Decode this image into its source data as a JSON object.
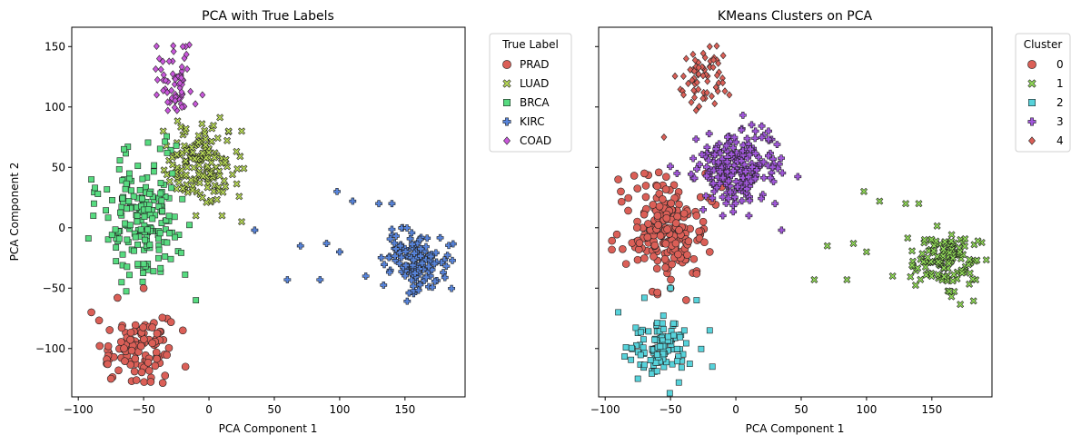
{
  "figure": {
    "left": {
      "title": "PCA with True Labels",
      "xlabel": "PCA Component 1",
      "ylabel": "PCA Component 2",
      "legend_title": "True Label",
      "legend_entries": [
        "PRAD",
        "LUAD",
        "BRCA",
        "KIRC",
        "COAD"
      ]
    },
    "right": {
      "title": "KMeans Clusters on PCA",
      "xlabel": "PCA Component 1",
      "legend_title": "Cluster",
      "legend_entries": [
        "0",
        "1",
        "2",
        "3",
        "4"
      ]
    }
  },
  "chart_data": [
    {
      "type": "scatter",
      "title": "PCA with True Labels",
      "xlabel": "PCA Component 1",
      "ylabel": "PCA Component 2",
      "xlim": [
        -105,
        196
      ],
      "ylim": [
        -140,
        166
      ],
      "xticks": [
        -100,
        -50,
        0,
        50,
        100,
        150
      ],
      "yticks": [
        -100,
        -50,
        0,
        50,
        100,
        150
      ],
      "grid": false,
      "legend_title": "True Label",
      "legend_position": "outside-upper-right",
      "series": [
        {
          "name": "PRAD",
          "color": "#db5f57",
          "marker": "circle",
          "center": [
            -55,
            -100
          ],
          "spread": [
            13,
            12
          ],
          "count": 110,
          "extra_points": [
            [
              -90,
              -70
            ],
            [
              -70,
              -58
            ],
            [
              -50,
              -50
            ],
            [
              -20,
              -85
            ],
            [
              -18,
              -115
            ],
            [
              -75,
              -125
            ]
          ]
        },
        {
          "name": "LUAD",
          "color": "#b9db57",
          "marker": "x",
          "center": [
            -5,
            52
          ],
          "spread": [
            14,
            14
          ],
          "count": 140,
          "extra_points": [
            [
              -35,
              80
            ],
            [
              15,
              80
            ],
            [
              25,
              80
            ],
            [
              -10,
              10
            ],
            [
              10,
              10
            ],
            [
              25,
              5
            ],
            [
              -5,
              25
            ]
          ]
        },
        {
          "name": "BRCA",
          "color": "#57db80",
          "marker": "square",
          "center": [
            -50,
            10
          ],
          "spread": [
            15,
            24
          ],
          "count": 190,
          "extra_points": [
            [
              -90,
              40
            ],
            [
              -85,
              28
            ],
            [
              -88,
              20
            ],
            [
              -32,
              62
            ],
            [
              -10,
              -60
            ],
            [
              -50,
              -30
            ],
            [
              -25,
              68
            ]
          ]
        },
        {
          "name": "KIRC",
          "color": "#5784db",
          "marker": "plus",
          "center": [
            160,
            -27
          ],
          "spread": [
            12,
            12
          ],
          "count": 130,
          "extra_points": [
            [
              60,
              -43
            ],
            [
              85,
              -43
            ],
            [
              70,
              -15
            ],
            [
              98,
              30
            ],
            [
              110,
              22
            ],
            [
              120,
              -40
            ],
            [
              130,
              20
            ],
            [
              140,
              20
            ],
            [
              35,
              -2
            ],
            [
              100,
              -20
            ],
            [
              90,
              -13
            ]
          ]
        },
        {
          "name": "COAD",
          "color": "#c957db",
          "marker": "diamond",
          "center": [
            -25,
            120
          ],
          "spread": [
            8,
            13
          ],
          "count": 60,
          "extra_points": [
            [
              -20,
              150
            ],
            [
              -38,
              140
            ],
            [
              -5,
              110
            ],
            [
              -40,
              110
            ]
          ]
        }
      ]
    },
    {
      "type": "scatter",
      "title": "KMeans Clusters on PCA",
      "xlabel": "PCA Component 1",
      "xlim": [
        -105,
        196
      ],
      "ylim": [
        -140,
        166
      ],
      "xticks": [
        -100,
        -50,
        0,
        50,
        100,
        150
      ],
      "yticks": [
        -100,
        -50,
        0,
        50,
        100,
        150
      ],
      "grid": false,
      "legend_title": "Cluster",
      "legend_position": "outside-upper-right",
      "series": [
        {
          "name": "0",
          "color": "#db5f57",
          "marker": "circle",
          "center": [
            -52,
            -2
          ],
          "spread": [
            14,
            22
          ],
          "count": 200,
          "extra_points": [
            [
              -90,
              40
            ],
            [
              -88,
              30
            ],
            [
              -70,
              45
            ],
            [
              -50,
              -50
            ],
            [
              -30,
              -38
            ],
            [
              -20,
              -20
            ],
            [
              -25,
              5
            ]
          ]
        },
        {
          "name": "1",
          "color": "#91db57",
          "marker": "x",
          "center": [
            160,
            -27
          ],
          "spread": [
            12,
            12
          ],
          "count": 130,
          "extra_points": [
            [
              60,
              -43
            ],
            [
              85,
              -43
            ],
            [
              70,
              -15
            ],
            [
              90,
              -13
            ],
            [
              98,
              30
            ],
            [
              110,
              22
            ],
            [
              120,
              -40
            ],
            [
              130,
              20
            ],
            [
              140,
              20
            ],
            [
              100,
              -20
            ],
            [
              165,
              -57
            ]
          ]
        },
        {
          "name": "2",
          "color": "#57d3db",
          "marker": "square",
          "center": [
            -55,
            -100
          ],
          "spread": [
            13,
            12
          ],
          "count": 110,
          "extra_points": [
            [
              -90,
              -70
            ],
            [
              -70,
              -58
            ],
            [
              -50,
              -50
            ],
            [
              -20,
              -85
            ],
            [
              -18,
              -115
            ],
            [
              -75,
              -125
            ],
            [
              -30,
              -60
            ]
          ]
        },
        {
          "name": "3",
          "color": "#a157db",
          "marker": "plus",
          "center": [
            0,
            50
          ],
          "spread": [
            16,
            15
          ],
          "count": 220,
          "extra_points": [
            [
              35,
              -2
            ],
            [
              -45,
              45
            ],
            [
              -25,
              15
            ],
            [
              25,
              80
            ],
            [
              15,
              80
            ],
            [
              -10,
              10
            ],
            [
              10,
              10
            ],
            [
              30,
              20
            ]
          ]
        },
        {
          "name": "4",
          "color": "#db5f57",
          "marker": "diamond",
          "center": [
            -25,
            120
          ],
          "spread": [
            8,
            13
          ],
          "count": 60,
          "extra_points": [
            [
              -20,
              150
            ],
            [
              -38,
              140
            ],
            [
              -5,
              110
            ],
            [
              -40,
              110
            ],
            [
              -55,
              75
            ],
            [
              -10,
              120
            ]
          ]
        }
      ]
    }
  ]
}
